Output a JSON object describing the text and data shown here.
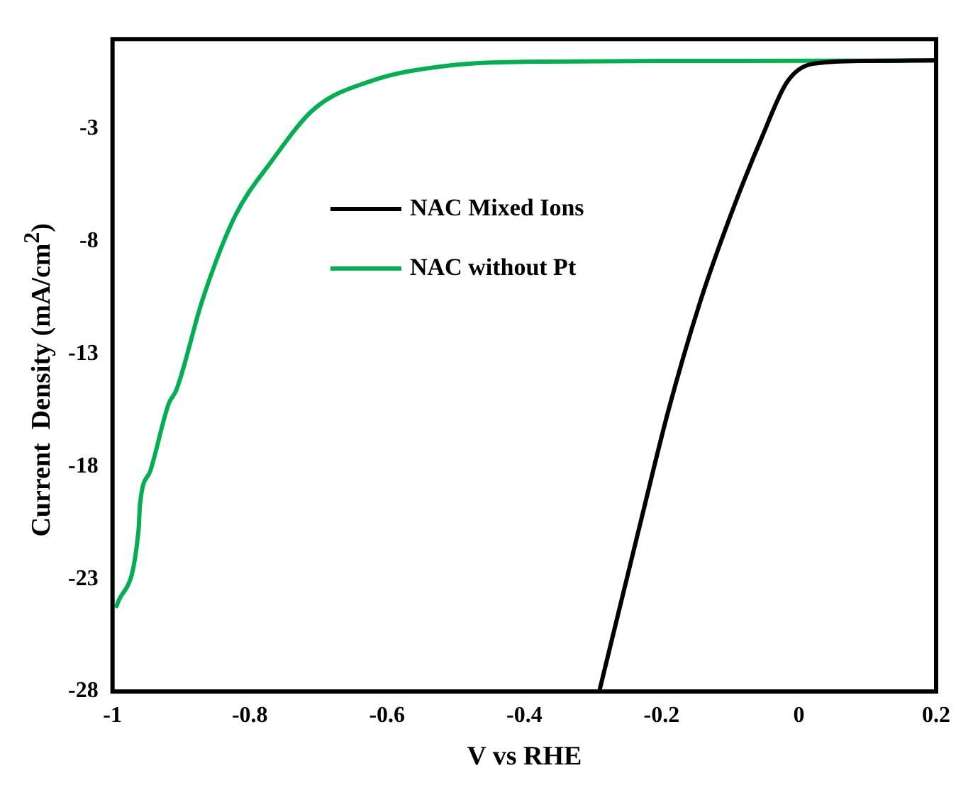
{
  "chart_data": {
    "type": "line",
    "xlabel": "V vs RHE",
    "ylabel": "Current  Density (mA/cm$^{2}$)",
    "xlim": [
      -1,
      0.2
    ],
    "ylim": [
      -28,
      1
    ],
    "xticks": [
      -1,
      -0.8,
      -0.6,
      -0.4,
      -0.2,
      0,
      0.2
    ],
    "yticks": [
      -3,
      -8,
      -13,
      -18,
      -23,
      -28
    ],
    "grid": false,
    "legend": "top left",
    "marker": "none",
    "line_style": "solid",
    "series": [
      {
        "name": "NAC Mixed Ions",
        "color": "#000000",
        "x": [
          -0.29,
          -0.23,
          -0.19,
          -0.144,
          -0.099,
          -0.053,
          -0.017,
          0.02,
          0.1,
          0.2
        ],
        "values": [
          -27.9,
          -20.4,
          -15.5,
          -10.7,
          -6.8,
          -3.3,
          -0.9,
          -0.1,
          0.03,
          0.05
        ]
      },
      {
        "name": "NAC without Pt",
        "color": "#00b050",
        "x": [
          -0.994,
          -0.962,
          -0.96,
          -0.945,
          -0.918,
          -0.907,
          -0.869,
          -0.822,
          -0.77,
          -0.706,
          -0.622,
          -0.516,
          -0.37,
          -0.1,
          0.2
        ],
        "values": [
          -24.2,
          -20.8,
          -19.7,
          -18.2,
          -15.2,
          -14.6,
          -10.6,
          -6.9,
          -4.5,
          -2.1,
          -0.85,
          -0.2,
          0,
          0.03,
          0.05
        ]
      }
    ]
  }
}
